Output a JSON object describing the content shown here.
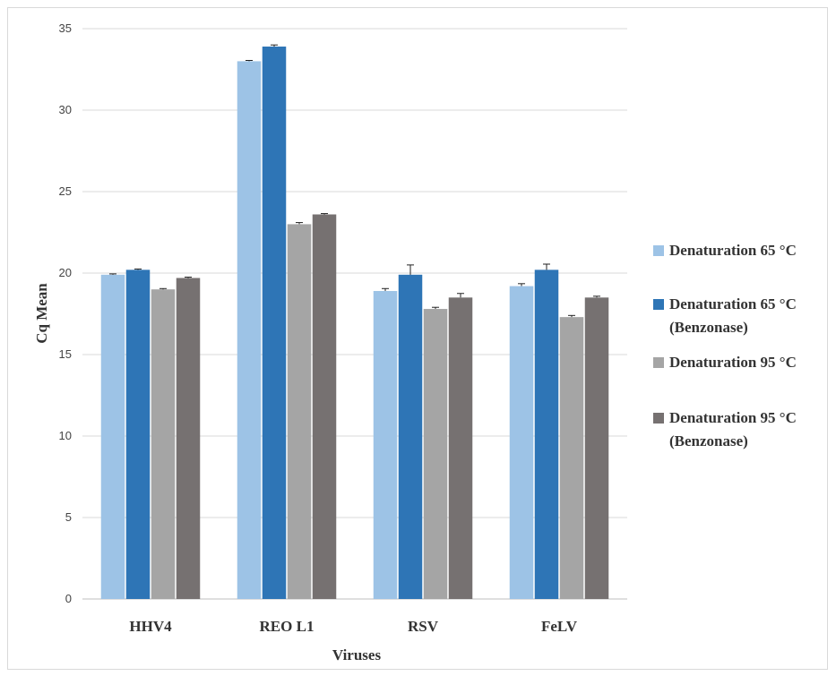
{
  "chart_data": {
    "type": "bar",
    "title": "",
    "xlabel": "Viruses",
    "ylabel": "Cq Mean",
    "ylim": [
      0,
      35
    ],
    "yticks": [
      0,
      5,
      10,
      15,
      20,
      25,
      30,
      35
    ],
    "grid": true,
    "legend_position": "right",
    "categories": [
      "HHV4",
      "REO L1",
      "RSV",
      "FeLV"
    ],
    "series": [
      {
        "name": "Denaturation 65 °C",
        "color": "#9dc3e6",
        "values": [
          19.9,
          33.0,
          18.9,
          19.2
        ],
        "errors": [
          0.05,
          0.05,
          0.15,
          0.15
        ]
      },
      {
        "name": "Denaturation 65 °C (Benzonase)",
        "color": "#2e75b6",
        "values": [
          20.2,
          33.9,
          19.9,
          20.2
        ],
        "errors": [
          0.05,
          0.1,
          0.6,
          0.35
        ]
      },
      {
        "name": "Denaturation 95 °C",
        "color": "#a5a5a5",
        "values": [
          19.0,
          23.0,
          17.8,
          17.3
        ],
        "errors": [
          0.05,
          0.1,
          0.1,
          0.1
        ]
      },
      {
        "name": "Denaturation 95 °C (Benzonase)",
        "color": "#767171",
        "values": [
          19.7,
          23.6,
          18.5,
          18.5
        ],
        "errors": [
          0.05,
          0.05,
          0.25,
          0.08
        ]
      }
    ]
  }
}
